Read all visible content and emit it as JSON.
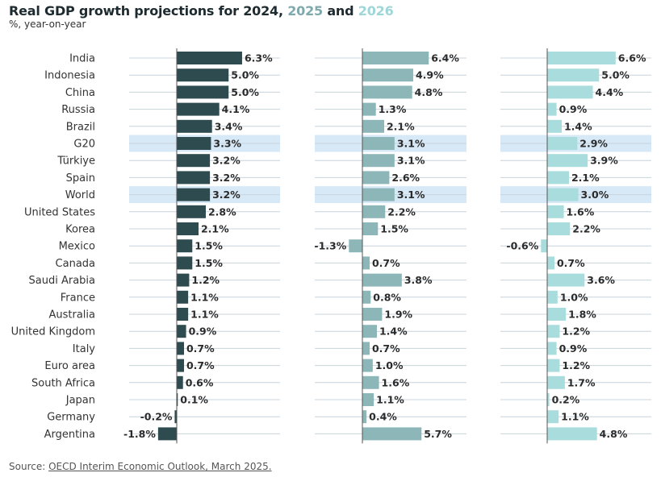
{
  "title_parts": {
    "lead": "Real GDP growth projections for ",
    "y2024": "2024",
    "sep1": ", ",
    "y2025": "2025",
    "sep2": " and ",
    "y2026": "2026"
  },
  "subtitle": "%, year-on-year",
  "source": {
    "prefix": "Source: ",
    "link_text": "OECD Interim Economic Outlook, March 2025."
  },
  "colors": {
    "y2024": "#2e4b4f",
    "y2025": "#8db6b8",
    "y2026": "#a9dcdc",
    "highlight_band": "#d7e9f7",
    "gridline": "#c8d4dc",
    "zero_axis": "#555555",
    "title_2025": "#7fa9ad",
    "title_2026": "#9fd6d8"
  },
  "chart_data": {
    "type": "bar",
    "orientation": "horizontal",
    "panels": 3,
    "value_unit": "%",
    "highlighted_categories": [
      "G20",
      "World"
    ],
    "categories": [
      "India",
      "Indonesia",
      "China",
      "Russia",
      "Brazil",
      "G20",
      "Türkiye",
      "Spain",
      "World",
      "United States",
      "Korea",
      "Mexico",
      "Canada",
      "Saudi Arabia",
      "France",
      "Australia",
      "United Kingdom",
      "Italy",
      "Euro area",
      "South Africa",
      "Japan",
      "Germany",
      "Argentina"
    ],
    "series": [
      {
        "name": "2024",
        "values": [
          6.3,
          5.0,
          5.0,
          4.1,
          3.4,
          3.3,
          3.2,
          3.2,
          3.2,
          2.8,
          2.1,
          1.5,
          1.5,
          1.2,
          1.1,
          1.1,
          0.9,
          0.7,
          0.7,
          0.6,
          0.1,
          -0.2,
          -1.8
        ]
      },
      {
        "name": "2025",
        "values": [
          6.4,
          4.9,
          4.8,
          1.3,
          2.1,
          3.1,
          3.1,
          2.6,
          3.1,
          2.2,
          1.5,
          -1.3,
          0.7,
          3.8,
          0.8,
          1.9,
          1.4,
          0.7,
          1.0,
          1.6,
          1.1,
          0.4,
          5.7
        ]
      },
      {
        "name": "2026",
        "values": [
          6.6,
          5.0,
          4.4,
          0.9,
          1.4,
          2.9,
          3.9,
          2.1,
          3.0,
          1.6,
          2.2,
          -0.6,
          0.7,
          3.6,
          1.0,
          1.8,
          1.2,
          0.9,
          1.2,
          1.7,
          0.2,
          1.1,
          4.8
        ]
      }
    ]
  }
}
